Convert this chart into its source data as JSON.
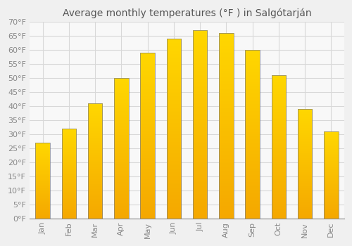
{
  "title": "Average monthly temperatures (°F ) in Salgótarján",
  "months": [
    "Jan",
    "Feb",
    "Mar",
    "Apr",
    "May",
    "Jun",
    "Jul",
    "Aug",
    "Sep",
    "Oct",
    "Nov",
    "Dec"
  ],
  "values": [
    27,
    32,
    41,
    50,
    59,
    64,
    67,
    66,
    60,
    51,
    39,
    31
  ],
  "bar_color_bottom": "#F5A800",
  "bar_color_top": "#FFD700",
  "bar_edge_color": "#808080",
  "background_color": "#f0f0f0",
  "plot_bg_color": "#f8f8f8",
  "grid_color": "#d8d8d8",
  "ylim_min": 0,
  "ylim_max": 70,
  "ytick_step": 5,
  "title_fontsize": 10,
  "tick_fontsize": 8,
  "bar_width": 0.55
}
